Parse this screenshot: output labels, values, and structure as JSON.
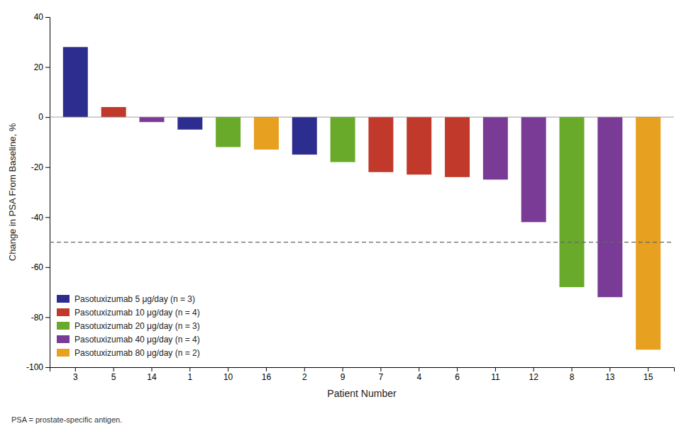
{
  "chart_data": {
    "type": "bar",
    "categories": [
      "3",
      "5",
      "14",
      "1",
      "10",
      "16",
      "2",
      "9",
      "7",
      "4",
      "6",
      "11",
      "12",
      "8",
      "13",
      "15"
    ],
    "values": [
      28,
      4,
      -2,
      -5,
      -12,
      -13,
      -15,
      -18,
      -22,
      -23,
      -24,
      -25,
      -42,
      -68,
      -72,
      -93
    ],
    "colors": [
      "#2d2d8f",
      "#c0392b",
      "#7a3b96",
      "#2d2d8f",
      "#6aaa2a",
      "#e8a020",
      "#2d2d8f",
      "#6aaa2a",
      "#c0392b",
      "#c0392b",
      "#c0392b",
      "#7a3b96",
      "#7a3b96",
      "#6aaa2a",
      "#7a3b96",
      "#e8a020"
    ],
    "xlabel": "Patient Number",
    "ylabel": "Change in PSA From Baseline, %",
    "ylim": [
      -100,
      40
    ],
    "yticks": [
      -100,
      -80,
      -60,
      -40,
      -20,
      0,
      20,
      40
    ],
    "reference_line": -50,
    "legend": "lower left",
    "legend_entries": [
      {
        "label": "Pasotuxizumab 5 μg/day (n = 3)",
        "color": "#2d2d8f"
      },
      {
        "label": "Pasotuxizumab 10 μg/day (n = 4)",
        "color": "#c0392b"
      },
      {
        "label": "Pasotuxizumab 20 μg/day (n = 3)",
        "color": "#6aaa2a"
      },
      {
        "label": "Pasotuxizumab 40 μg/day (n = 4)",
        "color": "#7a3b96"
      },
      {
        "label": "Pasotuxizumab 80 μg/day (n = 2)",
        "color": "#e8a020"
      }
    ],
    "footnote": "PSA = prostate-specific antigen.",
    "grid": false
  }
}
